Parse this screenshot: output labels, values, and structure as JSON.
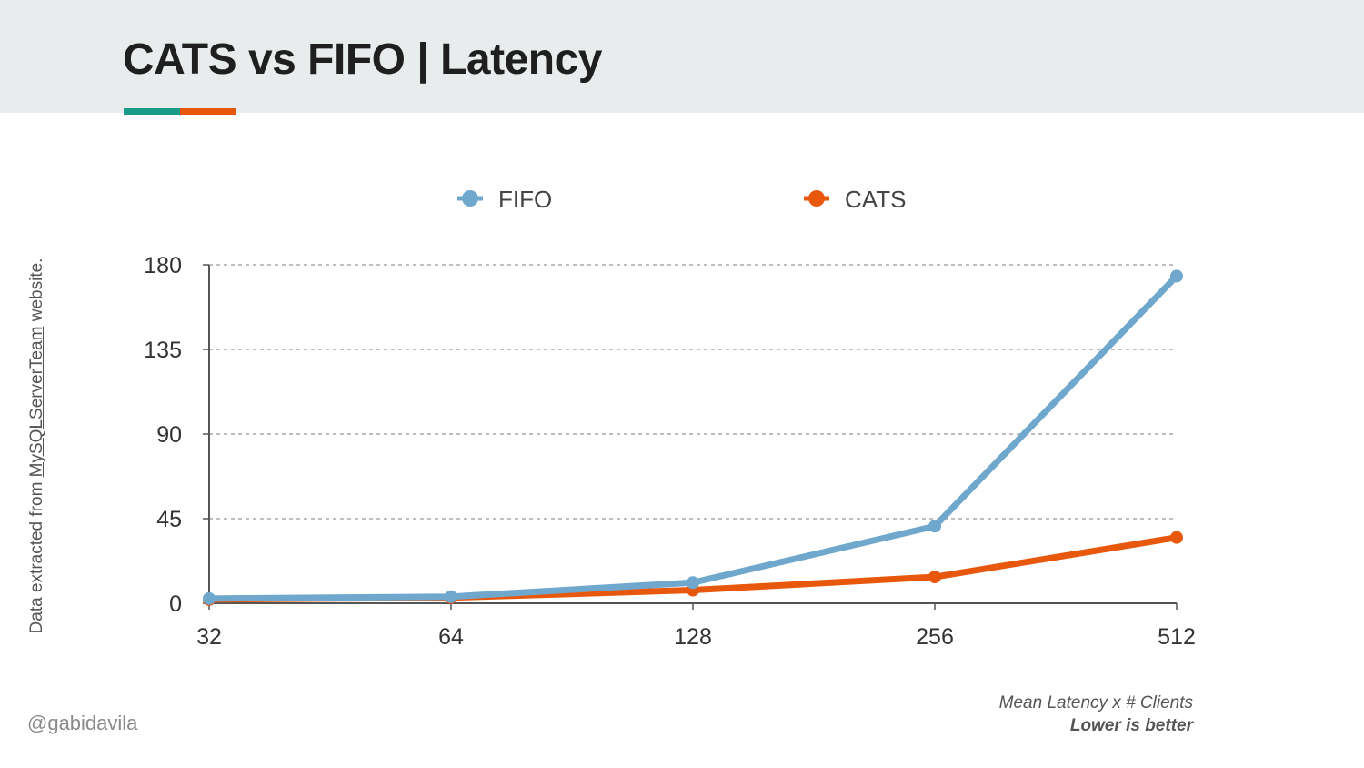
{
  "slide": {
    "title": "CATS vs FIFO | Latency",
    "source_prefix": "Data extracted from ",
    "source_link": "MySQLServerTeam",
    "source_suffix": " website.",
    "handle": "@gabidavila",
    "caption": "Mean Latency x # Clients",
    "caption_strong": "Lower is better",
    "colors": {
      "header_bg": "#e8ecec",
      "accent_teal": "#1b9a8a",
      "accent_orange": "#e8580c"
    }
  },
  "chart_data": {
    "type": "line",
    "title": "",
    "xlabel": "",
    "ylabel": "",
    "categories": [
      "32",
      "64",
      "128",
      "256",
      "512"
    ],
    "series": [
      {
        "name": "FIFO",
        "color": "#6fa8cc",
        "values": [
          2.5,
          3.5,
          11,
          41,
          174
        ]
      },
      {
        "name": "CATS",
        "color": "#e8580c",
        "values": [
          2,
          3,
          7,
          14,
          35
        ]
      }
    ],
    "ylim": [
      0,
      180
    ],
    "yticks": [
      0,
      45,
      90,
      135,
      180
    ],
    "grid": true,
    "legend_position": "top"
  }
}
